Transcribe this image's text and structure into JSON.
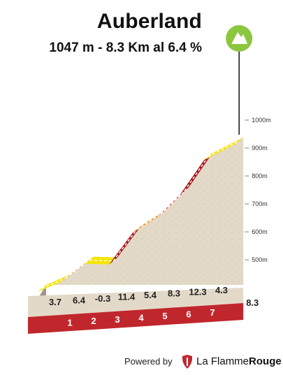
{
  "header": {
    "title": "Auberland",
    "subtitle": "1047 m - 8.3 Km al 6.4 %"
  },
  "footer": {
    "powered_by": "Powered by",
    "brand_light": "La Flamme",
    "brand_bold": "Rouge"
  },
  "icons": {
    "summit": "mountain-icon",
    "brand": "flame-icon"
  },
  "colors": {
    "summit_badge": "#8cc63f",
    "gradient_low": "#f5e500",
    "gradient_mid": "#f39a1e",
    "gradient_high": "#ee3b3b",
    "gradient_very_high": "#a50f13",
    "km_band": "#c0272d",
    "terrain": "#e3d9c8"
  },
  "chart_data": {
    "type": "area",
    "xlabel": "",
    "ylabel": "",
    "x_unit": "km",
    "y_unit": "m",
    "total_distance_km": 8.3,
    "xlim": [
      0,
      8.3
    ],
    "ylim": [
      400,
      1047
    ],
    "y_ticks": [
      500,
      600,
      700,
      800,
      900,
      1000
    ],
    "y_tick_labels": [
      "500m",
      "600m",
      "700m",
      "800m",
      "900m",
      "1000m"
    ],
    "km_markers": [
      "1",
      "2",
      "3",
      "4",
      "5",
      "6",
      "7"
    ],
    "end_label": "8.3",
    "segments": [
      {
        "km_start": 0,
        "km_end": 1,
        "gradient": 3.7,
        "label": "3.7"
      },
      {
        "km_start": 1,
        "km_end": 2,
        "gradient": 6.4,
        "label": "6.4"
      },
      {
        "km_start": 2,
        "km_end": 3,
        "gradient": -0.3,
        "label": "-0.3"
      },
      {
        "km_start": 3,
        "km_end": 4,
        "gradient": 11.4,
        "label": "11.4"
      },
      {
        "km_start": 4,
        "km_end": 5,
        "gradient": 5.4,
        "label": "5.4"
      },
      {
        "km_start": 5,
        "km_end": 6,
        "gradient": 8.3,
        "label": "8.3"
      },
      {
        "km_start": 6,
        "km_end": 7,
        "gradient": 12.3,
        "label": "12.3"
      },
      {
        "km_start": 7,
        "km_end": 8.3,
        "gradient": 4.3,
        "label": "4.3"
      }
    ],
    "grid": false,
    "legend": "none"
  }
}
